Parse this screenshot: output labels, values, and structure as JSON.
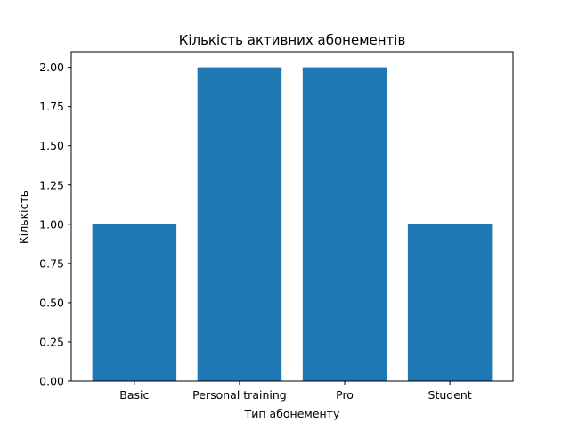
{
  "chart_data": {
    "type": "bar",
    "title": "Кількість активних абонементів",
    "xlabel": "Тип абонементу",
    "ylabel": "Кількість",
    "categories": [
      "Basic",
      "Personal training",
      "Pro",
      "Student"
    ],
    "values": [
      1,
      2,
      2,
      1
    ],
    "ylim": [
      0,
      2.1
    ],
    "yticks": [
      "0.00",
      "0.25",
      "0.50",
      "0.75",
      "1.00",
      "1.25",
      "1.50",
      "1.75",
      "2.00"
    ],
    "bar_color": "#1f77b4",
    "grid": false,
    "legend": "none"
  }
}
